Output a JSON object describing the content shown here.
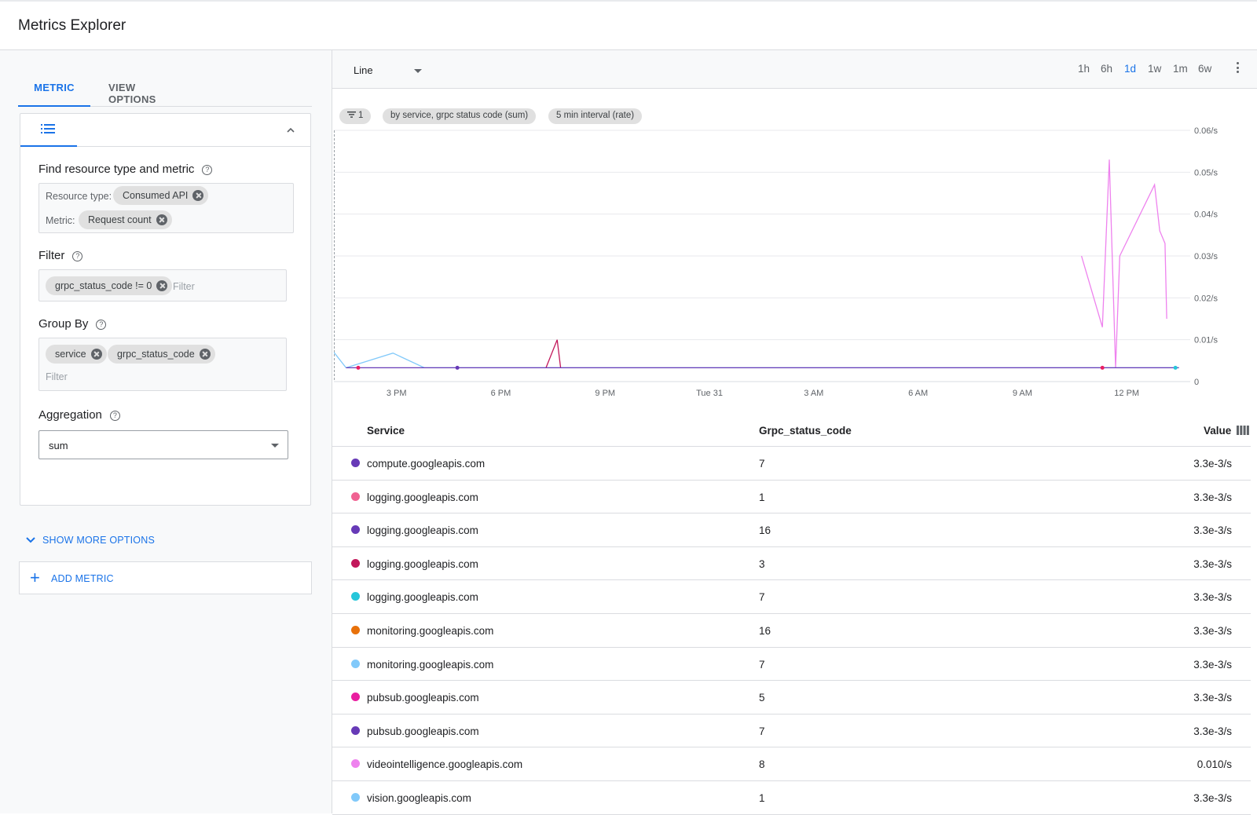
{
  "app": {
    "title": "Metrics Explorer"
  },
  "left": {
    "tabs": [
      {
        "label": "METRIC",
        "active": true
      },
      {
        "label": "VIEW OPTIONS",
        "active": false
      }
    ],
    "find": {
      "label": "Find resource type and metric",
      "resource_label": "Resource type:",
      "resource_value": "Consumed API",
      "metric_label": "Metric:",
      "metric_value": "Request count"
    },
    "filter": {
      "label": "Filter",
      "chip": "grpc_status_code != 0",
      "placeholder": "Filter"
    },
    "groupby": {
      "label": "Group By",
      "chips": [
        "service",
        "grpc_status_code"
      ],
      "placeholder": "Filter"
    },
    "aggregation": {
      "label": "Aggregation",
      "value": "sum"
    },
    "more_options": "SHOW MORE OPTIONS",
    "add_metric": "ADD METRIC"
  },
  "toolbar": {
    "chart_type": "Line",
    "ranges": [
      {
        "label": "1h",
        "active": false
      },
      {
        "label": "6h",
        "active": false
      },
      {
        "label": "1d",
        "active": true
      },
      {
        "label": "1w",
        "active": false
      },
      {
        "label": "1m",
        "active": false
      },
      {
        "label": "6w",
        "active": false
      }
    ]
  },
  "pills": {
    "filter_count": "1",
    "grouping": "by service, grpc status code (sum)",
    "interval": "5 min interval (rate)"
  },
  "chart_data": {
    "type": "line",
    "x_ticks": [
      "3 PM",
      "6 PM",
      "9 PM",
      "Tue 31",
      "3 AM",
      "6 AM",
      "9 AM",
      "12 PM"
    ],
    "y_ticks": [
      "0",
      "0.01/s",
      "0.02/s",
      "0.03/s",
      "0.04/s",
      "0.05/s",
      "0.06/s"
    ],
    "x_range_hours": [
      1.2,
      25.6
    ],
    "ylim": [
      0,
      0.06
    ],
    "series": [
      {
        "color": "#ee82ee",
        "points": [
          [
            22.7,
            0.03
          ],
          [
            23.3,
            0.013
          ],
          [
            23.5,
            0.053
          ],
          [
            23.68,
            0.0033
          ],
          [
            23.8,
            0.03
          ],
          [
            24.8,
            0.047
          ],
          [
            24.95,
            0.036
          ],
          [
            25.1,
            0.033
          ],
          [
            25.15,
            0.015
          ]
        ]
      },
      {
        "color": "#81c9fa",
        "points": [
          [
            1.2,
            0.007
          ],
          [
            1.55,
            0.0033
          ],
          [
            2.9,
            0.0068
          ],
          [
            3.8,
            0.0033
          ],
          [
            25.5,
            0.0033
          ]
        ]
      },
      {
        "color": "#c2185b",
        "points": [
          [
            7.3,
            0.0033
          ],
          [
            7.62,
            0.01
          ],
          [
            7.72,
            0.0033
          ]
        ]
      },
      {
        "color": "#673ab7",
        "points": [
          [
            1.55,
            0.0033
          ],
          [
            25.5,
            0.0033
          ]
        ]
      }
    ],
    "markers": [
      {
        "x": 1.9,
        "y": 0.0033,
        "color": "#e91e63"
      },
      {
        "x": 4.75,
        "y": 0.0033,
        "color": "#673ab7"
      },
      {
        "x": 23.3,
        "y": 0.0033,
        "color": "#e91e63"
      },
      {
        "x": 25.4,
        "y": 0.0033,
        "color": "#26c6da"
      }
    ]
  },
  "table": {
    "headers": {
      "service": "Service",
      "code": "Grpc_status_code",
      "value": "Value"
    },
    "rows": [
      {
        "color": "#673ab7",
        "service": "compute.googleapis.com",
        "code": "7",
        "value": "3.3e-3/s"
      },
      {
        "color": "#f06292",
        "service": "logging.googleapis.com",
        "code": "1",
        "value": "3.3e-3/s"
      },
      {
        "color": "#673ab7",
        "service": "logging.googleapis.com",
        "code": "16",
        "value": "3.3e-3/s"
      },
      {
        "color": "#c2185b",
        "service": "logging.googleapis.com",
        "code": "3",
        "value": "3.3e-3/s"
      },
      {
        "color": "#26c6da",
        "service": "logging.googleapis.com",
        "code": "7",
        "value": "3.3e-3/s"
      },
      {
        "color": "#e8710a",
        "service": "monitoring.googleapis.com",
        "code": "16",
        "value": "3.3e-3/s"
      },
      {
        "color": "#81c9fa",
        "service": "monitoring.googleapis.com",
        "code": "7",
        "value": "3.3e-3/s"
      },
      {
        "color": "#e91ea0",
        "service": "pubsub.googleapis.com",
        "code": "5",
        "value": "3.3e-3/s"
      },
      {
        "color": "#673ab7",
        "service": "pubsub.googleapis.com",
        "code": "7",
        "value": "3.3e-3/s"
      },
      {
        "color": "#ee82ee",
        "service": "videointelligence.googleapis.com",
        "code": "8",
        "value": "0.010/s"
      },
      {
        "color": "#81c9fa",
        "service": "vision.googleapis.com",
        "code": "1",
        "value": "3.3e-3/s"
      }
    ]
  }
}
